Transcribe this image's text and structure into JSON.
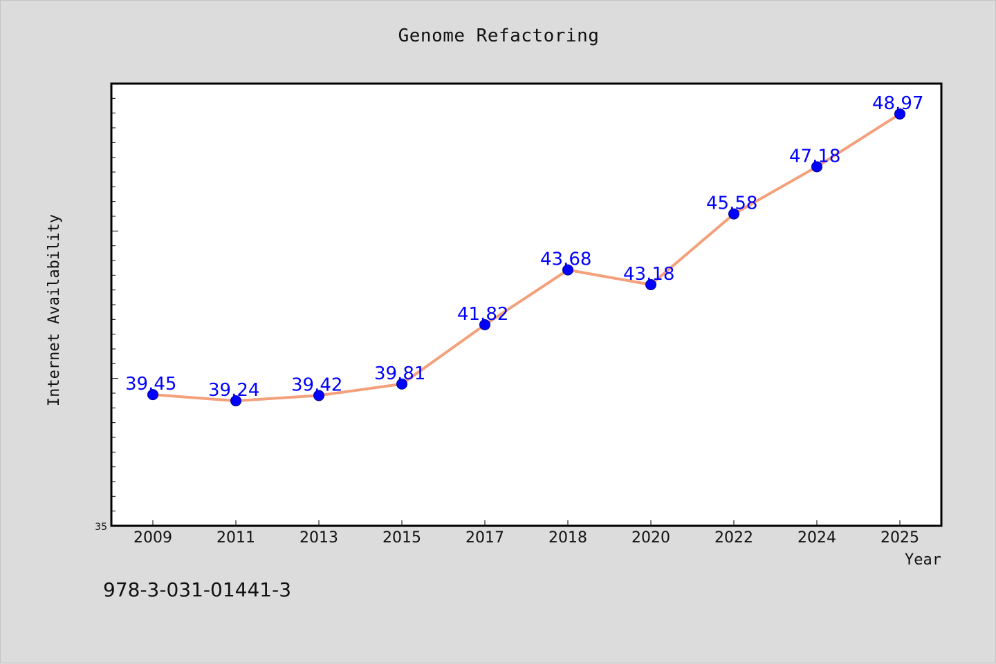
{
  "colors": {
    "background": "#dcdcdc",
    "plot_background": "#ffffff",
    "line": "#f4a07a",
    "marker": "#0000ff",
    "label": "#0000ff"
  },
  "isbn": "978-3-031-01441-3",
  "chart_data": {
    "type": "line",
    "title": "Genome Refactoring",
    "xlabel": "Year",
    "ylabel": "Internet Availability",
    "categories": [
      "2009",
      "2011",
      "2013",
      "2015",
      "2017",
      "2018",
      "2020",
      "2022",
      "2024",
      "2025"
    ],
    "series": [
      {
        "values": [
          39.45,
          39.24,
          39.42,
          39.81,
          41.82,
          43.68,
          43.18,
          45.58,
          47.18,
          48.97
        ]
      }
    ],
    "data_labels": [
      "39.45",
      "39.24",
      "39.42",
      "39.81",
      "41.82",
      "43.68",
      "43.18",
      "45.58",
      "47.18",
      "48.97"
    ],
    "ylim": [
      35,
      50
    ],
    "y_tick_labels": [
      "35"
    ],
    "grid": false,
    "legend": "none"
  }
}
